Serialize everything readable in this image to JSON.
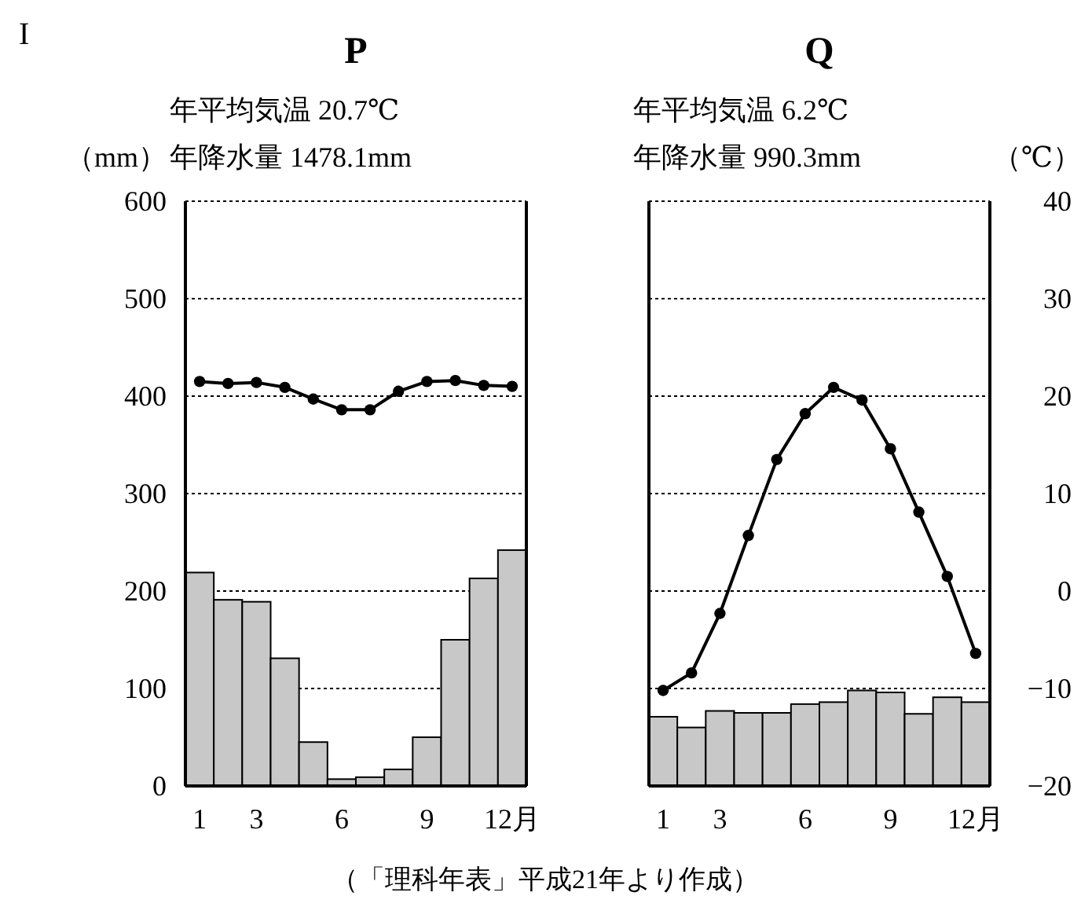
{
  "chart_data": [
    {
      "type": "bar",
      "title": "P",
      "subtitle": "年平均気温 20.7℃\n年降水量 1478.1mm",
      "ylabel": "（mm）",
      "annotations": [
        "I",
        "（「理科年表」平成21年より作成）"
      ],
      "categories": [
        "1",
        null,
        "3",
        null,
        null,
        "6",
        null,
        null,
        "9",
        null,
        null,
        "12月"
      ],
      "series": [
        {
          "axis": "y",
          "color": "#c8c8c8",
          "values": [
            219,
            191,
            189,
            131,
            45,
            7,
            9,
            17,
            50,
            150,
            213,
            242
          ]
        },
        {
          "type": "line",
          "axis": "y2",
          "color": "#000000",
          "marker": "circle",
          "values": [
            21.5,
            21.3,
            21.4,
            20.9,
            19.7,
            18.6,
            18.6,
            20.5,
            21.5,
            21.6,
            21.1,
            21.0
          ]
        }
      ],
      "ylim": [
        0,
        600
      ],
      "yticks": [
        0,
        100,
        200,
        300,
        400,
        500,
        600
      ],
      "y2lim": [
        -20,
        40
      ],
      "grid": "y",
      "tick_labels": [
        "x",
        "y"
      ]
    },
    {
      "type": "bar",
      "title": "Q",
      "subtitle": "年平均気温 6.2℃\n年降水量 990.3mm",
      "y2label": "（℃）",
      "categories": [
        "1",
        null,
        "3",
        null,
        null,
        "6",
        null,
        null,
        "9",
        null,
        null,
        "12月"
      ],
      "series": [
        {
          "axis": "y",
          "color": "#c8c8c8",
          "values": [
            71,
            60,
            77,
            75,
            75,
            84,
            86,
            98,
            96,
            74,
            91,
            86
          ]
        },
        {
          "type": "line",
          "axis": "y2",
          "color": "#000000",
          "marker": "circle",
          "values": [
            -10.2,
            -8.4,
            -2.3,
            5.7,
            13.5,
            18.2,
            20.9,
            19.6,
            14.6,
            8.1,
            1.5,
            -6.4
          ]
        }
      ],
      "ylim": [
        0,
        600
      ],
      "y2lim": [
        -20,
        40
      ],
      "y2ticks": [
        {
          "value": -20,
          "label": "−20"
        },
        {
          "value": -10,
          "label": "−10"
        },
        0,
        10,
        20,
        30,
        40
      ],
      "grid": "y",
      "tick_labels": [
        "x",
        "y2"
      ]
    }
  ]
}
